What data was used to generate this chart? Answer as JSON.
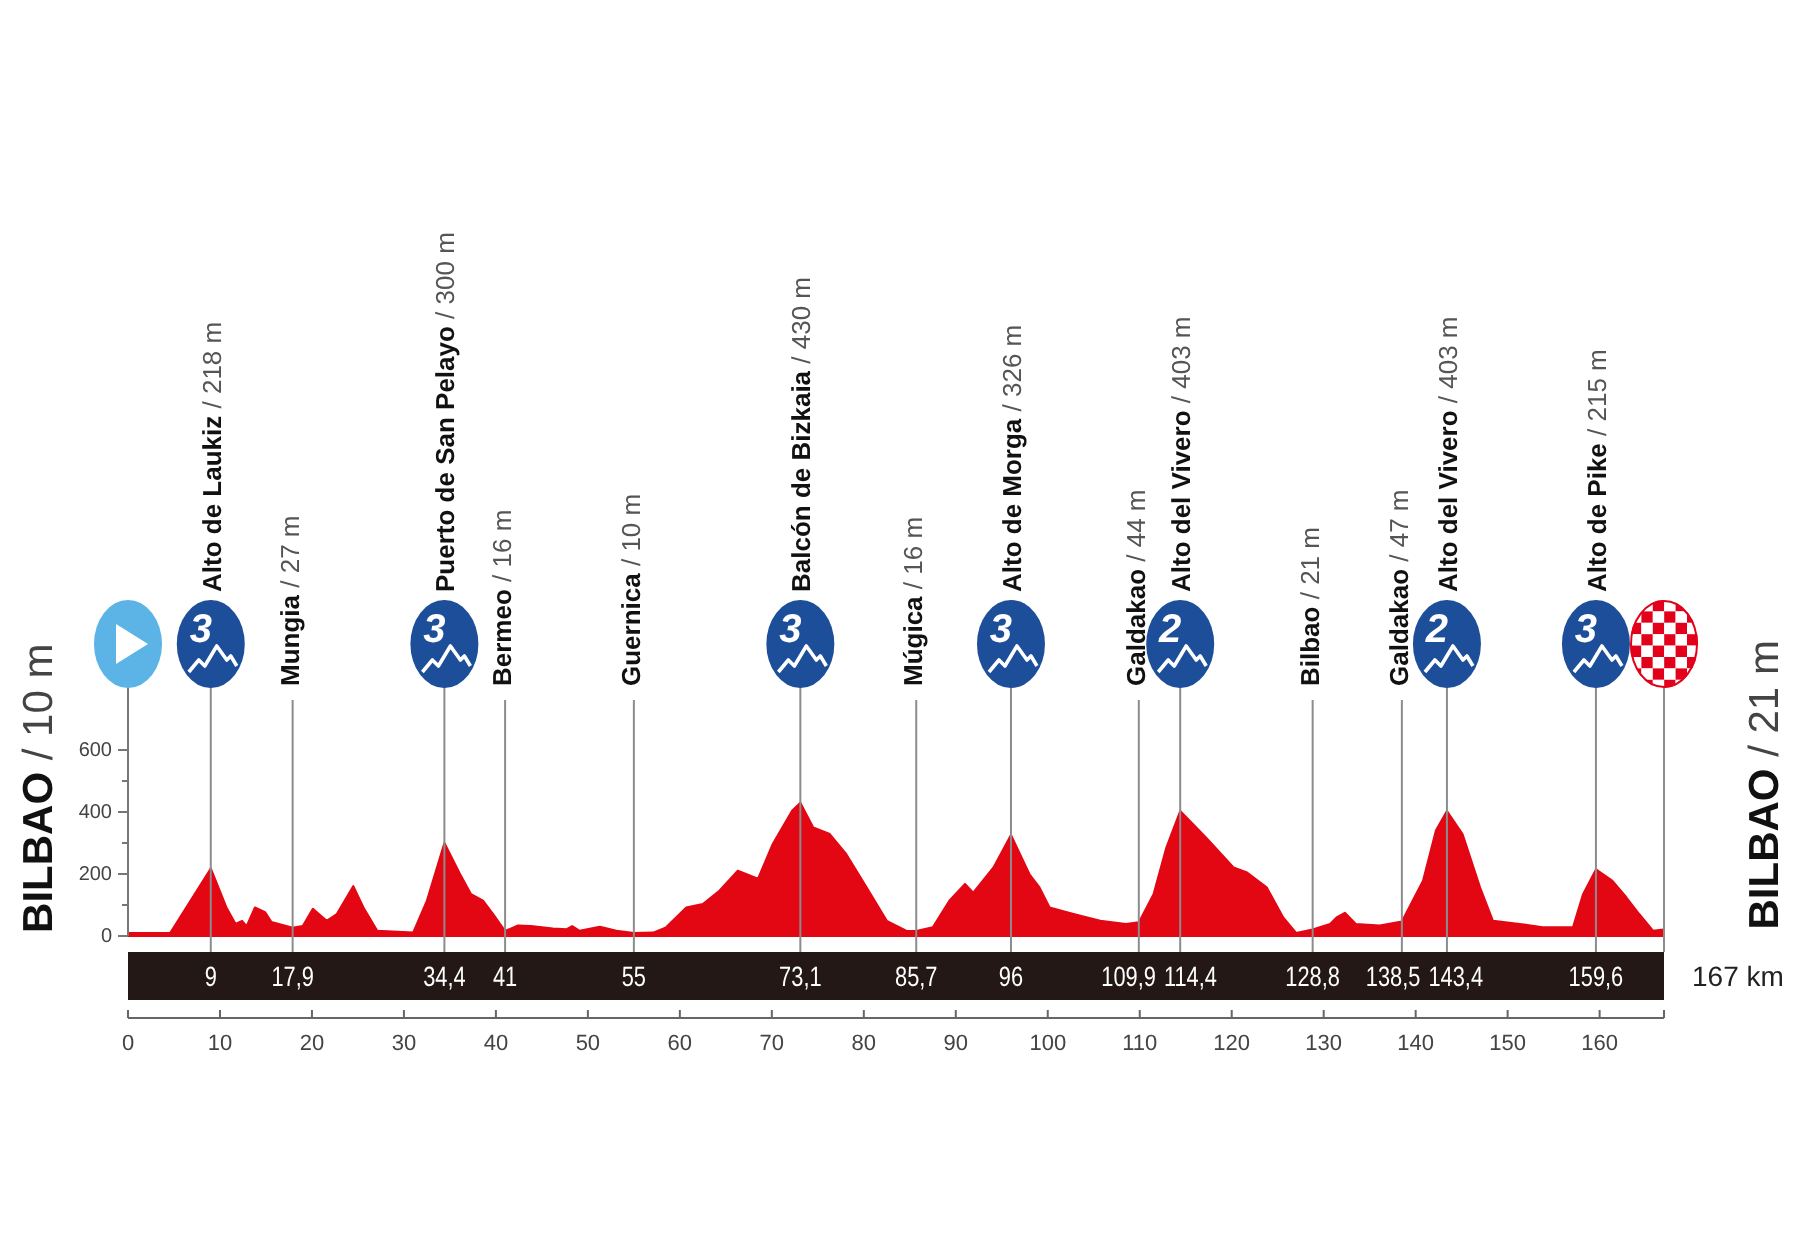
{
  "chart_data": {
    "type": "area",
    "x": [
      0,
      4.6,
      9,
      10.7,
      11.7,
      12.4,
      12.9,
      13.8,
      14.9,
      15.6,
      17.9,
      19,
      20.1,
      21.6,
      22.7,
      24.5,
      25.6,
      27.1,
      31,
      32.5,
      34.4,
      36.1,
      37.3,
      38.6,
      39.7,
      41,
      42.4,
      43.8,
      46.2,
      47.7,
      48.3,
      49.1,
      51.3,
      53.1,
      55,
      57.1,
      58.5,
      60.7,
      62.5,
      64.3,
      66.3,
      68.5,
      70.1,
      72.2,
      73.1,
      74.5,
      76.3,
      78.1,
      80.3,
      82.5,
      84.6,
      85.7,
      87.5,
      89.3,
      91,
      91.9,
      94.1,
      96,
      98,
      99.1,
      100.2,
      102.8,
      105.7,
      108.5,
      109.9,
      111.5,
      112.9,
      114.4,
      117.2,
      120.2,
      121.6,
      123.8,
      125.6,
      127,
      128.8,
      130.7,
      131.4,
      132.3,
      133.5,
      136.1,
      138.5,
      140.8,
      142.2,
      143.4,
      145.1,
      147,
      148.4,
      151.3,
      153.8,
      157.1,
      158.2,
      159.6,
      161.4,
      162.9,
      164.3,
      165.8,
      167
    ],
    "values": [
      10,
      10,
      218,
      92,
      39,
      49,
      32,
      92,
      77,
      45,
      27,
      32,
      88,
      49,
      71,
      161,
      92,
      17,
      11,
      114,
      300,
      200,
      135,
      114,
      71,
      16,
      34,
      32,
      24,
      22,
      32,
      17,
      30,
      17,
      10,
      11,
      28,
      92,
      103,
      146,
      211,
      185,
      297,
      404,
      430,
      350,
      329,
      264,
      157,
      49,
      17,
      16,
      28,
      114,
      168,
      140,
      221,
      326,
      200,
      157,
      92,
      71,
      49,
      39,
      44,
      135,
      286,
      403,
      318,
      221,
      206,
      157,
      60,
      10,
      21,
      39,
      60,
      75,
      39,
      34,
      47,
      178,
      340,
      403,
      329,
      157,
      49,
      39,
      28,
      28,
      135,
      215,
      178,
      125,
      71,
      17,
      21
    ],
    "color": "#e30613",
    "xlim": [
      0,
      167
    ],
    "xticks": [
      0,
      10,
      20,
      30,
      40,
      50,
      60,
      70,
      80,
      90,
      100,
      110,
      120,
      130,
      140,
      150,
      160,
      {
        "value": 167,
        "label": null
      }
    ],
    "ylim": [
      0,
      800
    ],
    "yticks": [
      0,
      {
        "value": 100,
        "label": null
      },
      200,
      {
        "value": 300,
        "label": null
      },
      400,
      {
        "value": 500,
        "label": null
      },
      600
    ],
    "x2lim": [
      0,
      167
    ],
    "x2label": "167 km",
    "x2ticks": [
      9,
      {
        "value": 17.9,
        "label": "17,9"
      },
      {
        "value": 34.4,
        "label": "34,4"
      },
      41,
      55,
      {
        "value": 73.1,
        "label": "73,1"
      },
      {
        "value": 85.7,
        "label": "85,7"
      },
      96,
      {
        "value": 109.9,
        "label": "109,9"
      },
      {
        "value": 114.4,
        "label": "114,4"
      },
      {
        "value": 128.8,
        "label": "128,8"
      },
      {
        "value": 138.5,
        "label": "138,5"
      },
      {
        "value": 143.4,
        "label": "143,4"
      },
      {
        "value": 159.6,
        "label": "159,6"
      }
    ],
    "ref_lines": [
      {
        "axis": "x",
        "value": 9,
        "label": "Alto de Laukiz / 218 m"
      },
      {
        "axis": "x",
        "value": 34.4,
        "label": "Puerto de San Pelayo / 300 m"
      },
      {
        "axis": "x",
        "value": 73.1,
        "label": "Balcón de Bizkaia / 430 m"
      },
      {
        "axis": "x",
        "value": 96,
        "label": "Alto de Morga / 326 m"
      },
      {
        "axis": "x",
        "value": 114.4,
        "label": "Alto del Vivero / 403 m"
      },
      {
        "axis": "x",
        "value": 143.4,
        "label": "Alto del Vivero / 403 m"
      },
      {
        "axis": "x",
        "value": 159.6,
        "label": "Alto de Pike / 215 m"
      },
      {
        "axis": "x",
        "value": 17.9,
        "label": "Mungia / 27 m"
      },
      {
        "axis": "x",
        "value": 41,
        "label": "Bermeo / 16 m"
      },
      {
        "axis": "x",
        "value": 55,
        "label": "Guernica / 10 m"
      },
      {
        "axis": "x",
        "value": 85.7,
        "label": "Múgica / 16 m"
      },
      {
        "axis": "x",
        "value": 109.9,
        "label": "Galdakao / 44 m"
      },
      {
        "axis": "x",
        "value": 128.8,
        "label": "Bilbao / 21 m"
      },
      {
        "axis": "x",
        "value": 138.5,
        "label": "Galdakao / 47 m"
      }
    ],
    "annotations": [
      {
        "text": "BILBAO / 10 m",
        "x": 0,
        "y": 10
      },
      {
        "text": "BILBAO / 21 m",
        "x": 167,
        "y": 21
      },
      "3",
      "3",
      "3",
      "3",
      "2",
      "2",
      "3"
    ]
  }
}
